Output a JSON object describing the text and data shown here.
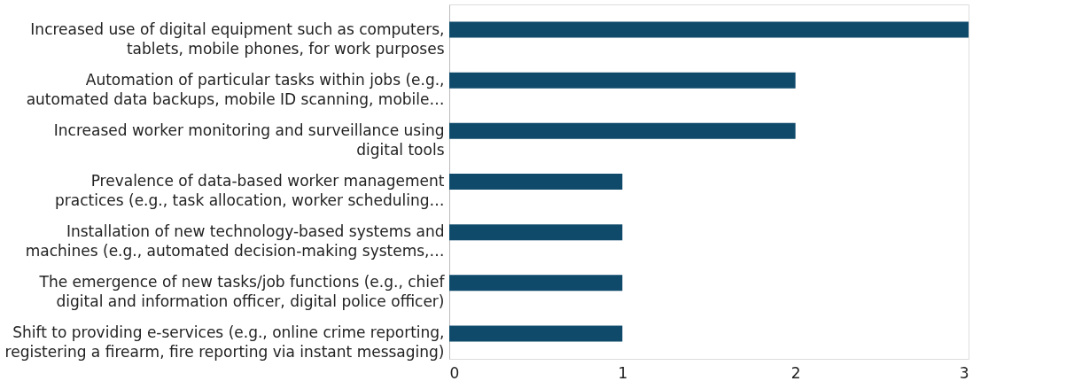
{
  "chart_data": {
    "type": "bar",
    "orientation": "horizontal",
    "categories": [
      "Increased use of digital equipment such as computers,\ntablets, mobile phones, for work purposes",
      "Automation of particular tasks within jobs (e.g.,\nautomated data backups, mobile ID scanning, mobile…",
      "Increased worker monitoring and surveillance using\ndigital tools",
      "Prevalence of data-based worker management\npractices (e.g., task allocation, worker scheduling…",
      "Installation of new technology-based systems and\nmachines (e.g., automated decision-making systems,…",
      "The emergence of new tasks/job functions (e.g., chief\ndigital and information officer, digital police officer)",
      "Shift to providing e-services (e.g., online crime reporting,\nregistering a firearm, fire reporting via instant messaging)"
    ],
    "values": [
      3,
      2,
      2,
      1,
      1,
      1,
      1
    ],
    "color": "#0f4a6b",
    "xlim": [
      0,
      3
    ],
    "xticks": [
      0,
      1,
      2,
      3
    ],
    "grid": false
  }
}
